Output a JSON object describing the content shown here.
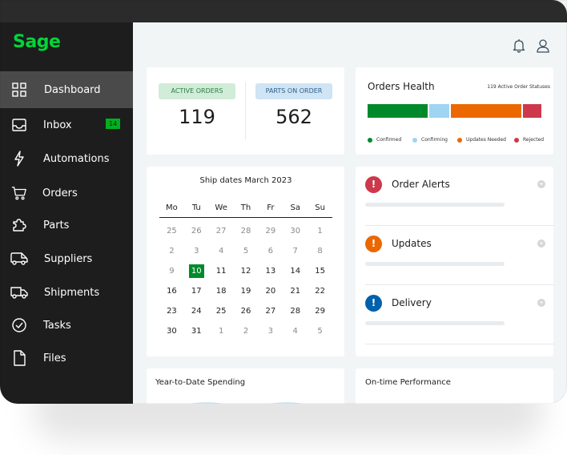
{
  "sidebar": {
    "logo": "Sage",
    "items": [
      {
        "label": "Dashboard",
        "icon": "grid-icon"
      },
      {
        "label": "Inbox",
        "icon": "inbox-icon",
        "badge": "14"
      },
      {
        "label": "Automations",
        "icon": "lightning-icon"
      },
      {
        "label": "Orders",
        "icon": "cart-icon"
      },
      {
        "label": "Parts",
        "icon": "puzzle-icon"
      },
      {
        "label": "Suppliers",
        "icon": "van-icon"
      },
      {
        "label": "Shipments",
        "icon": "truck-icon"
      },
      {
        "label": "Tasks",
        "icon": "check-circle-icon"
      },
      {
        "label": "Files",
        "icon": "file-icon"
      }
    ]
  },
  "header": {
    "icons": [
      "bell-icon",
      "user-icon"
    ]
  },
  "kpis": {
    "active_orders": {
      "label": "ACTIVE ORDERS",
      "value": "119"
    },
    "parts_on_order": {
      "label": "PARTS ON ORDER",
      "value": "562"
    }
  },
  "orders_health": {
    "title": "Orders Health",
    "subtitle": "119 Active Order Statuses",
    "segments": [
      {
        "label": "Confirmed",
        "color": "#008a2b",
        "share": 0.356
      },
      {
        "label": "Confirming",
        "color": "#9fd4f3",
        "share": 0.117
      },
      {
        "label": "Updates Needed",
        "color": "#eb6800",
        "share": 0.417
      },
      {
        "label": "Rejected",
        "color": "#cd384b",
        "share": 0.11
      }
    ]
  },
  "calendar": {
    "title": "Ship dates March 2023",
    "days": [
      "Mo",
      "Tu",
      "We",
      "Th",
      "Fr",
      "Sa",
      "Su"
    ],
    "weeks": [
      [
        "25",
        "26",
        "27",
        "28",
        "29",
        "30",
        "1"
      ],
      [
        "2",
        "3",
        "4",
        "5",
        "6",
        "7",
        "8"
      ],
      [
        "9",
        "10",
        "11",
        "12",
        "13",
        "14",
        "15"
      ],
      [
        "16",
        "17",
        "18",
        "19",
        "20",
        "21",
        "22"
      ],
      [
        "23",
        "24",
        "25",
        "26",
        "27",
        "28",
        "29"
      ],
      [
        "30",
        "31",
        "1",
        "2",
        "3",
        "4",
        "5"
      ]
    ],
    "today": "10"
  },
  "alerts": [
    {
      "label": "Order Alerts",
      "color": "#cd384b",
      "symbol": "!"
    },
    {
      "label": "Updates",
      "color": "#eb6800",
      "symbol": "!"
    },
    {
      "label": "Delivery",
      "color": "#0061ab",
      "symbol": "!"
    }
  ],
  "plus_symbol": "+",
  "ytd": {
    "title": "Year-to-Date Spending"
  },
  "otp": {
    "title": "On-time Performance",
    "colors": {
      "green": "#008a2b",
      "blue": "#4ba3c7"
    }
  }
}
